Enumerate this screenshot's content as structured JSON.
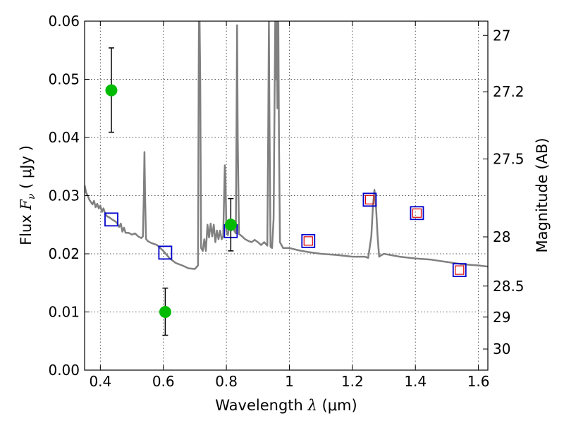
{
  "chart_data": {
    "type": "scatter",
    "x_axis": {
      "label_prefix": "Wavelength  ",
      "label_symbol": "λ",
      "label_suffix": " (μm)",
      "range": [
        0.35,
        1.63
      ],
      "ticks": [
        0.4,
        0.6,
        0.8,
        1.0,
        1.2,
        1.4,
        1.6
      ],
      "tick_labels": [
        "0.4",
        "0.6",
        "0.8",
        "1",
        "1.2",
        "1.4",
        "1.6"
      ]
    },
    "y_axis": {
      "label_prefix": "Flux  ",
      "label_symbol": "F",
      "label_sub": "ν",
      "label_suffix": "  ( μJy )",
      "range": [
        0.0,
        0.06
      ],
      "ticks": [
        0.0,
        0.01,
        0.02,
        0.03,
        0.04,
        0.05,
        0.06
      ],
      "tick_labels": [
        "0.00",
        "0.01",
        "0.02",
        "0.03",
        "0.04",
        "0.05",
        "0.06"
      ]
    },
    "y2_axis": {
      "label": "Magnitude (AB)",
      "ticks": [
        27,
        27.2,
        27.5,
        28,
        28.5,
        29,
        30
      ],
      "tick_labels": [
        "27",
        "27.2",
        "27.5",
        "28",
        "28.5",
        "29",
        "30"
      ]
    },
    "grid": true,
    "observed_photometry": {
      "marker": "circle",
      "color": "#00bb00",
      "points": [
        {
          "x": 0.435,
          "y": 0.0481,
          "err_low": 0.0409,
          "err_high": 0.0554
        },
        {
          "x": 0.606,
          "y": 0.01,
          "err_low": 0.006,
          "err_high": 0.0141
        },
        {
          "x": 0.814,
          "y": 0.025,
          "err_low": 0.0205,
          "err_high": 0.0295
        }
      ]
    },
    "model_photometry": {
      "marker": "square",
      "color": "#0000cc",
      "points": [
        {
          "x": 0.435,
          "y": 0.0259
        },
        {
          "x": 0.606,
          "y": 0.0202
        },
        {
          "x": 0.814,
          "y": 0.0239
        },
        {
          "x": 1.06,
          "y": 0.0222
        },
        {
          "x": 1.255,
          "y": 0.0293
        },
        {
          "x": 1.405,
          "y": 0.027
        },
        {
          "x": 1.54,
          "y": 0.0172
        }
      ]
    },
    "model_photometry_inner": {
      "marker": "square",
      "color": "#dd0000",
      "points": [
        {
          "x": 1.06,
          "y": 0.0222
        },
        {
          "x": 1.255,
          "y": 0.0293
        },
        {
          "x": 1.405,
          "y": 0.027
        },
        {
          "x": 1.54,
          "y": 0.0172
        }
      ]
    },
    "sed_model": {
      "color": "#808080",
      "x": [
        0.35,
        0.355,
        0.36,
        0.365,
        0.37,
        0.375,
        0.38,
        0.385,
        0.39,
        0.395,
        0.4,
        0.405,
        0.41,
        0.415,
        0.42,
        0.43,
        0.44,
        0.45,
        0.46,
        0.465,
        0.47,
        0.475,
        0.48,
        0.49,
        0.5,
        0.51,
        0.52,
        0.53,
        0.535,
        0.538,
        0.54,
        0.542,
        0.545,
        0.55,
        0.56,
        0.58,
        0.6,
        0.62,
        0.64,
        0.66,
        0.68,
        0.7,
        0.71,
        0.712,
        0.713,
        0.715,
        0.717,
        0.72,
        0.725,
        0.73,
        0.735,
        0.74,
        0.745,
        0.75,
        0.755,
        0.76,
        0.765,
        0.77,
        0.775,
        0.78,
        0.785,
        0.79,
        0.795,
        0.797,
        0.8,
        0.805,
        0.81,
        0.815,
        0.82,
        0.825,
        0.83,
        0.832,
        0.834,
        0.836,
        0.84,
        0.85,
        0.86,
        0.87,
        0.88,
        0.89,
        0.9,
        0.91,
        0.92,
        0.93,
        0.933,
        0.935,
        0.937,
        0.94,
        0.945,
        0.95,
        0.955,
        0.958,
        0.96,
        0.962,
        0.965,
        0.967,
        0.97,
        0.975,
        0.98,
        1.0,
        1.03,
        1.06,
        1.1,
        1.15,
        1.2,
        1.24,
        1.25,
        1.26,
        1.265,
        1.27,
        1.275,
        1.28,
        1.285,
        1.29,
        1.3,
        1.35,
        1.4,
        1.45,
        1.5,
        1.55,
        1.6,
        1.63
      ],
      "y": [
        0.0318,
        0.0305,
        0.03,
        0.0293,
        0.0289,
        0.0285,
        0.0291,
        0.028,
        0.0286,
        0.0278,
        0.0283,
        0.0272,
        0.0278,
        0.027,
        0.0265,
        0.0262,
        0.0258,
        0.0255,
        0.0246,
        0.0252,
        0.0238,
        0.0245,
        0.0236,
        0.0236,
        0.0233,
        0.0235,
        0.023,
        0.0227,
        0.023,
        0.03,
        0.0375,
        0.03,
        0.0226,
        0.0222,
        0.0219,
        0.0215,
        0.0205,
        0.0192,
        0.0184,
        0.018,
        0.0175,
        0.0174,
        0.018,
        0.05,
        0.06,
        0.06,
        0.05,
        0.021,
        0.0205,
        0.0225,
        0.0205,
        0.025,
        0.0228,
        0.0252,
        0.023,
        0.025,
        0.022,
        0.024,
        0.0225,
        0.024,
        0.0225,
        0.023,
        0.0352,
        0.033,
        0.024,
        0.0232,
        0.0255,
        0.024,
        0.025,
        0.024,
        0.0235,
        0.04,
        0.0593,
        0.04,
        0.0234,
        0.023,
        0.0225,
        0.0222,
        0.022,
        0.0224,
        0.022,
        0.0215,
        0.022,
        0.0214,
        0.042,
        0.06,
        0.042,
        0.0212,
        0.021,
        0.026,
        0.06,
        0.05,
        0.06,
        0.045,
        0.06,
        0.04,
        0.022,
        0.0215,
        0.021,
        0.021,
        0.0206,
        0.0203,
        0.02,
        0.0198,
        0.0195,
        0.0195,
        0.0193,
        0.023,
        0.028,
        0.031,
        0.028,
        0.023,
        0.0195,
        0.0197,
        0.02,
        0.0195,
        0.0192,
        0.019,
        0.0186,
        0.0182,
        0.018,
        0.0178
      ]
    }
  }
}
